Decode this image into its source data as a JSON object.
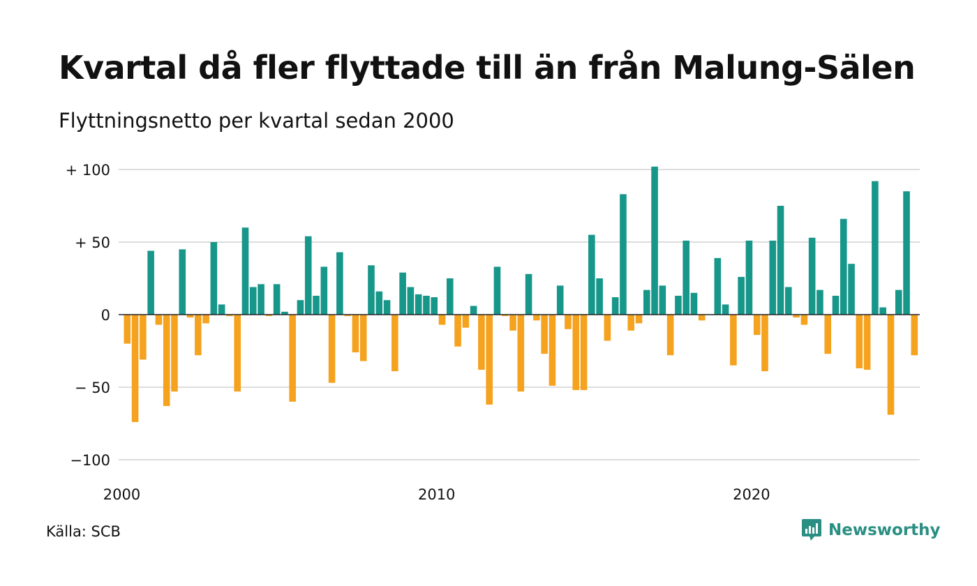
{
  "title": "Kvartal då fler flyttade till än från Malung-Sälen",
  "subtitle": "Flyttningsnetto per kvartal sedan 2000",
  "source": "Källa: SCB",
  "brand": "Newsworthy",
  "colors": {
    "positive": "#17968a",
    "negative": "#f5a21f",
    "grid": "#dddddd",
    "brand": "#2a8f83"
  },
  "chart_data": {
    "type": "bar",
    "xlabel": "",
    "ylabel": "",
    "ylim": [
      -100,
      100
    ],
    "yticks": [
      100,
      50,
      0,
      -50,
      -100
    ],
    "ytick_labels": [
      "+ 100",
      "+  50",
      "0",
      "− 50",
      "−100"
    ],
    "xticks": [
      2000,
      2010,
      2020
    ],
    "xtick_labels": [
      "2000",
      "2010",
      "2020"
    ],
    "grid": true,
    "legend": "none",
    "x_start": "2000 Q1",
    "values": [
      -20,
      -74,
      -31,
      44,
      -7,
      -63,
      -53,
      45,
      -2,
      -28,
      -6,
      50,
      7,
      -1,
      -53,
      60,
      19,
      21,
      -1,
      21,
      2,
      -60,
      10,
      54,
      13,
      33,
      -47,
      43,
      -1,
      -26,
      -32,
      34,
      16,
      10,
      -39,
      29,
      19,
      14,
      13,
      12,
      -7,
      25,
      -22,
      -9,
      6,
      -38,
      -62,
      33,
      -1,
      -11,
      -53,
      28,
      -4,
      -27,
      -49,
      20,
      -10,
      -52,
      -52,
      55,
      25,
      -18,
      12,
      83,
      -11,
      -6,
      17,
      102,
      20,
      -28,
      13,
      51,
      15,
      -4,
      0,
      39,
      7,
      -35,
      26,
      51,
      -14,
      -39,
      51,
      75,
      19,
      -2,
      -7,
      53,
      17,
      -27,
      13,
      66,
      35,
      -37,
      -38,
      92,
      5,
      -69,
      17,
      85,
      -28
    ]
  }
}
